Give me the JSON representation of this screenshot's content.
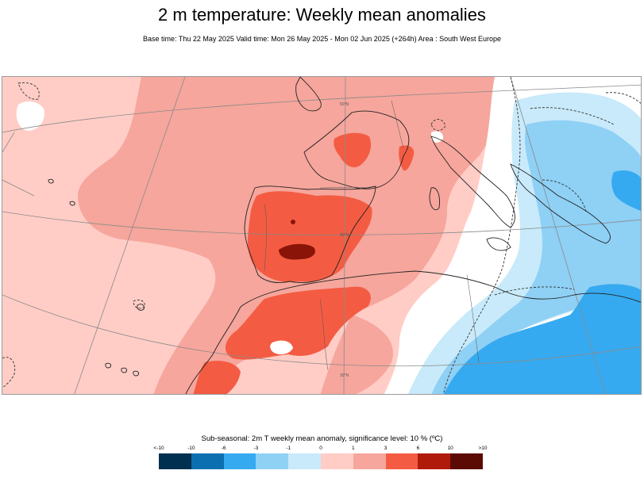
{
  "title": "2 m temperature: Weekly mean anomalies",
  "subtitle": "Base time: Thu 22 May 2025 Valid time: Mon 26 May 2025 - Mon 02 Jun 2025 (+264h) Area : South West Europe",
  "map": {
    "region": "South West Europe",
    "projection_labels": [
      "50°N",
      "40°N",
      "30°N"
    ]
  },
  "legend": {
    "title": "Sub-seasonal: 2m T weekly mean anomaly, significance level: 10 % (ºC)",
    "ticks": [
      "<-10",
      "-10",
      "-6",
      "-3",
      "-1",
      "0",
      "1",
      "3",
      "6",
      "10",
      ">10"
    ],
    "colors": [
      "#00304f",
      "#0b6fb0",
      "#36aaf0",
      "#8fd0f5",
      "#c8eafa",
      "#ffcdc6",
      "#f6a69c",
      "#f35c43",
      "#b01a0b",
      "#5c0b04"
    ]
  }
}
